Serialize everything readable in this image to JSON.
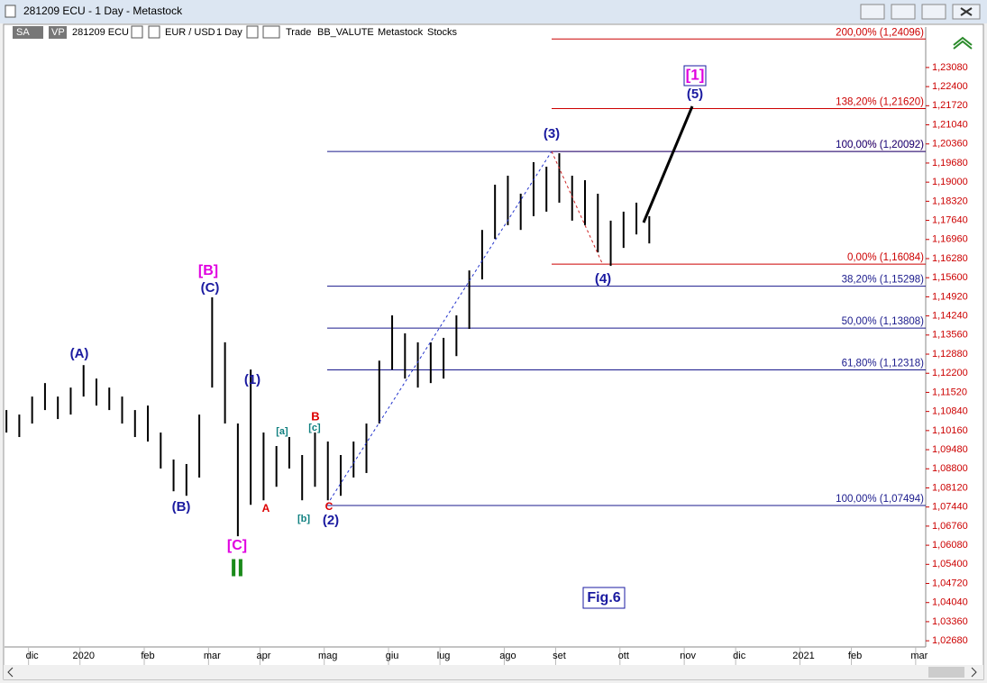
{
  "window": {
    "title": "281209 ECU - 1 Day - Metastock",
    "toolbar": [
      "SA",
      "VP",
      "281209 ECU",
      "EUR / USD",
      "1 Day",
      "Trade",
      "BB_VALUTE",
      "Metastock",
      "Stocks"
    ]
  },
  "chart_data": {
    "type": "range-bar",
    "color": "#000000",
    "categories": [
      null,
      null,
      "dic",
      null,
      null,
      null,
      "2020",
      null,
      null,
      null,
      null,
      "feb",
      null,
      null,
      null,
      null,
      "mar",
      null,
      null,
      null,
      "apr",
      null,
      null,
      null,
      null,
      "mag",
      null,
      null,
      null,
      null,
      "giu",
      null,
      null,
      null,
      "lug",
      null,
      null,
      null,
      null,
      "ago",
      null,
      null,
      null,
      "set",
      null,
      null,
      null,
      null,
      "ott",
      null,
      null,
      null,
      null,
      "nov",
      null,
      null,
      null,
      "dic",
      null,
      null,
      null,
      null,
      "2021",
      null,
      null,
      null,
      "feb",
      null,
      null,
      null,
      null,
      "mar"
    ],
    "high": [
      1.1089,
      1.1073,
      1.1137,
      1.1185,
      1.1137,
      1.1169,
      1.1249,
      1.1201,
      1.1169,
      1.1137,
      1.1089,
      1.1105,
      1.1009,
      1.0913,
      1.0897,
      1.1073,
      1.149,
      1.133,
      1.1041,
      1.1233,
      1.1009,
      1.0961,
      1.0993,
      1.0929,
      1.1009,
      1.0977,
      1.0929,
      1.0977,
      1.1041,
      1.1265,
      1.1426,
      1.1362,
      1.133,
      1.133,
      1.1346,
      1.1426,
      1.1586,
      1.173,
      1.1891,
      1.1923,
      1.1859,
      1.1971,
      1.1955,
      1.2003,
      1.1923,
      1.1907,
      1.1859,
      1.1763,
      1.1795,
      1.1827,
      1.1779,
      null,
      null,
      null,
      null,
      null,
      null,
      null,
      null,
      null,
      null,
      null,
      null,
      null,
      null,
      null,
      null,
      null,
      null,
      null,
      null,
      null
    ],
    "low": [
      1.1009,
      1.0993,
      1.1041,
      1.1089,
      1.1057,
      1.1073,
      1.1137,
      1.1105,
      1.1089,
      1.1041,
      1.0993,
      1.0977,
      1.0881,
      1.08,
      1.0784,
      1.0849,
      1.1169,
      1.1041,
      1.064,
      1.0752,
      1.0768,
      1.0816,
      1.0881,
      1.0768,
      1.0816,
      1.0768,
      1.0784,
      1.0849,
      1.0865,
      1.1041,
      1.1233,
      1.1201,
      1.1169,
      1.1185,
      1.1201,
      1.1281,
      1.1378,
      1.1554,
      1.1698,
      1.1747,
      1.173,
      1.1779,
      1.1795,
      1.1827,
      1.1763,
      1.1747,
      1.165,
      1.1602,
      1.1666,
      1.1714,
      1.1682,
      null,
      null,
      null,
      null,
      null,
      null,
      null,
      null,
      null,
      null,
      null,
      null,
      null,
      null,
      null,
      null,
      null,
      null,
      null,
      null,
      null
    ],
    "ylim": [
      1.0246,
      1.2452
    ],
    "yticks": [
      {
        "value": 1.0268,
        "label": "1,02680"
      },
      {
        "value": 1.0336,
        "label": "1,03360"
      },
      {
        "value": 1.0404,
        "label": "1,04040"
      },
      {
        "value": 1.0472,
        "label": "1,04720"
      },
      {
        "value": 1.054,
        "label": "1,05400"
      },
      {
        "value": 1.0608,
        "label": "1,06080"
      },
      {
        "value": 1.0676,
        "label": "1,06760"
      },
      {
        "value": 1.0744,
        "label": "1,07440"
      },
      {
        "value": 1.0812,
        "label": "1,08120"
      },
      {
        "value": 1.088,
        "label": "1,08800"
      },
      {
        "value": 1.0948,
        "label": "1,09480"
      },
      {
        "value": 1.1016,
        "label": "1,10160"
      },
      {
        "value": 1.1084,
        "label": "1,10840"
      },
      {
        "value": 1.1152,
        "label": "1,11520"
      },
      {
        "value": 1.122,
        "label": "1,12200"
      },
      {
        "value": 1.1288,
        "label": "1,12880"
      },
      {
        "value": 1.1356,
        "label": "1,13560"
      },
      {
        "value": 1.1424,
        "label": "1,14240"
      },
      {
        "value": 1.1492,
        "label": "1,14920"
      },
      {
        "value": 1.156,
        "label": "1,15600"
      },
      {
        "value": 1.1628,
        "label": "1,16280"
      },
      {
        "value": 1.1696,
        "label": "1,16960"
      },
      {
        "value": 1.1764,
        "label": "1,17640"
      },
      {
        "value": 1.1832,
        "label": "1,18320"
      },
      {
        "value": 1.19,
        "label": "1,19000"
      },
      {
        "value": 1.1968,
        "label": "1,19680"
      },
      {
        "value": 1.2036,
        "label": "1,20360"
      },
      {
        "value": 1.2104,
        "label": "1,21040"
      },
      {
        "value": 1.2172,
        "label": "1,21720"
      },
      {
        "value": 1.224,
        "label": "1,22400"
      },
      {
        "value": 1.2308,
        "label": "1,23080"
      }
    ],
    "fib_levels": [
      {
        "value": 1.24096,
        "label": "200,00% (1,24096)",
        "color": "#cc0000"
      },
      {
        "value": 1.2162,
        "label": "138,20% (1,21620)",
        "color": "#cc0000"
      },
      {
        "value": 1.20092,
        "label": "100,00% (1,20092)",
        "color": "#cc0000"
      },
      {
        "value": 1.16084,
        "label": "0,00% (1,16084)",
        "color": "#cc0000"
      },
      {
        "value": 1.15298,
        "label": "38,20% (1,15298)",
        "color": "#1a1a8c"
      },
      {
        "value": 1.13808,
        "label": "50,00% (1,13808)",
        "color": "#1a1a8c"
      },
      {
        "value": 1.12318,
        "label": "61,80% (1,12318)",
        "color": "#1a1a8c"
      },
      {
        "value": 1.07494,
        "label": "100,00% (1,07494)",
        "color": "#1a1a8c"
      },
      {
        "value": 1.20092,
        "label": "100,00% (1,20092)",
        "color": "#1a1a8c"
      }
    ],
    "annotations": [
      {
        "text": "[1]",
        "color": "#e000e0"
      },
      {
        "text": "(5)",
        "color": "#1a1aa0"
      },
      {
        "text": "(3)",
        "color": "#1a1aa0"
      },
      {
        "text": "(4)",
        "color": "#1a1aa0"
      },
      {
        "text": "[B]",
        "color": "#e000e0"
      },
      {
        "text": "(C)",
        "color": "#1a1aa0"
      },
      {
        "text": "(A)",
        "color": "#1a1aa0"
      },
      {
        "text": "(1)",
        "color": "#1a1aa0"
      },
      {
        "text": "(B)",
        "color": "#1a1aa0"
      },
      {
        "text": "[C]",
        "color": "#e000e0"
      },
      {
        "text": "II",
        "color": "#1a8a1a"
      },
      {
        "text": "A",
        "color": "#dd0000"
      },
      {
        "text": "B",
        "color": "#dd0000"
      },
      {
        "text": "C",
        "color": "#dd0000"
      },
      {
        "text": "[a]",
        "color": "#108080"
      },
      {
        "text": "[c]",
        "color": "#108080"
      },
      {
        "text": "[b]",
        "color": "#108080"
      },
      {
        "text": "(2)",
        "color": "#1a1aa0"
      }
    ],
    "figure_label": "Fig.6"
  }
}
